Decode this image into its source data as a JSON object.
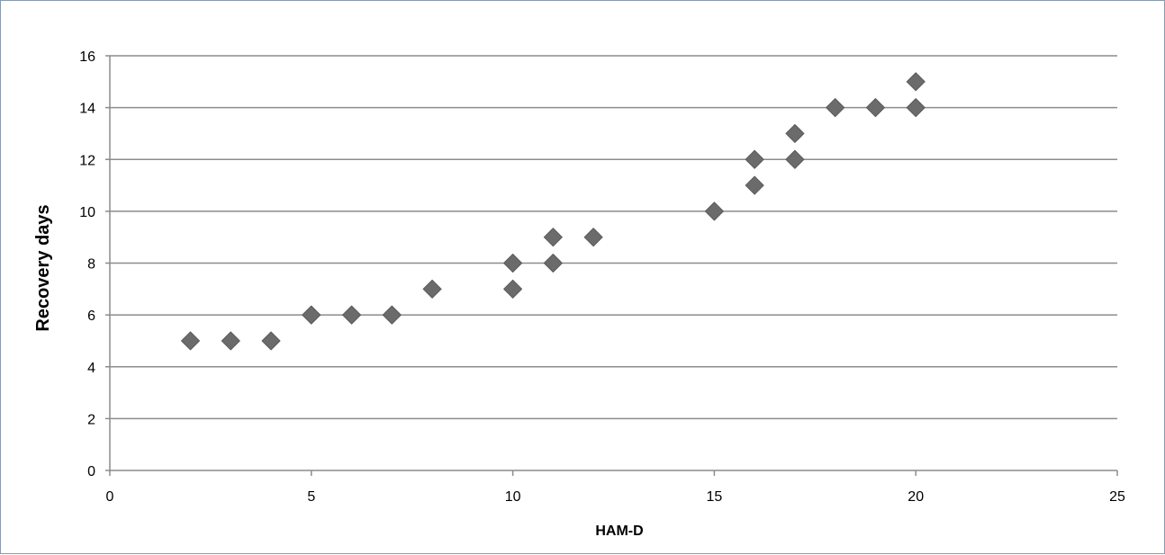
{
  "chart_data": {
    "type": "scatter",
    "title": "",
    "xlabel": "HAM-D",
    "ylabel": "Recovery days",
    "xlim": [
      0,
      25
    ],
    "ylim": [
      0,
      16
    ],
    "xticks": [
      0,
      5,
      10,
      15,
      20,
      25
    ],
    "yticks": [
      0,
      2,
      4,
      6,
      8,
      10,
      12,
      14,
      16
    ],
    "grid": {
      "horizontal": true,
      "vertical": false
    },
    "legend": "none",
    "marker": "diamond",
    "marker_color": "#6b6b6b",
    "gridline_color": "#8c8c8c",
    "series": [
      {
        "points": [
          {
            "x": 2,
            "y": 5
          },
          {
            "x": 3,
            "y": 5
          },
          {
            "x": 4,
            "y": 5
          },
          {
            "x": 5,
            "y": 6
          },
          {
            "x": 6,
            "y": 6
          },
          {
            "x": 7,
            "y": 6
          },
          {
            "x": 8,
            "y": 7
          },
          {
            "x": 10,
            "y": 7
          },
          {
            "x": 10,
            "y": 8
          },
          {
            "x": 11,
            "y": 8
          },
          {
            "x": 11,
            "y": 9
          },
          {
            "x": 12,
            "y": 9
          },
          {
            "x": 15,
            "y": 10
          },
          {
            "x": 16,
            "y": 11
          },
          {
            "x": 16,
            "y": 12
          },
          {
            "x": 17,
            "y": 12
          },
          {
            "x": 17,
            "y": 13
          },
          {
            "x": 18,
            "y": 14
          },
          {
            "x": 19,
            "y": 14
          },
          {
            "x": 20,
            "y": 14
          },
          {
            "x": 20,
            "y": 15
          }
        ]
      }
    ]
  }
}
